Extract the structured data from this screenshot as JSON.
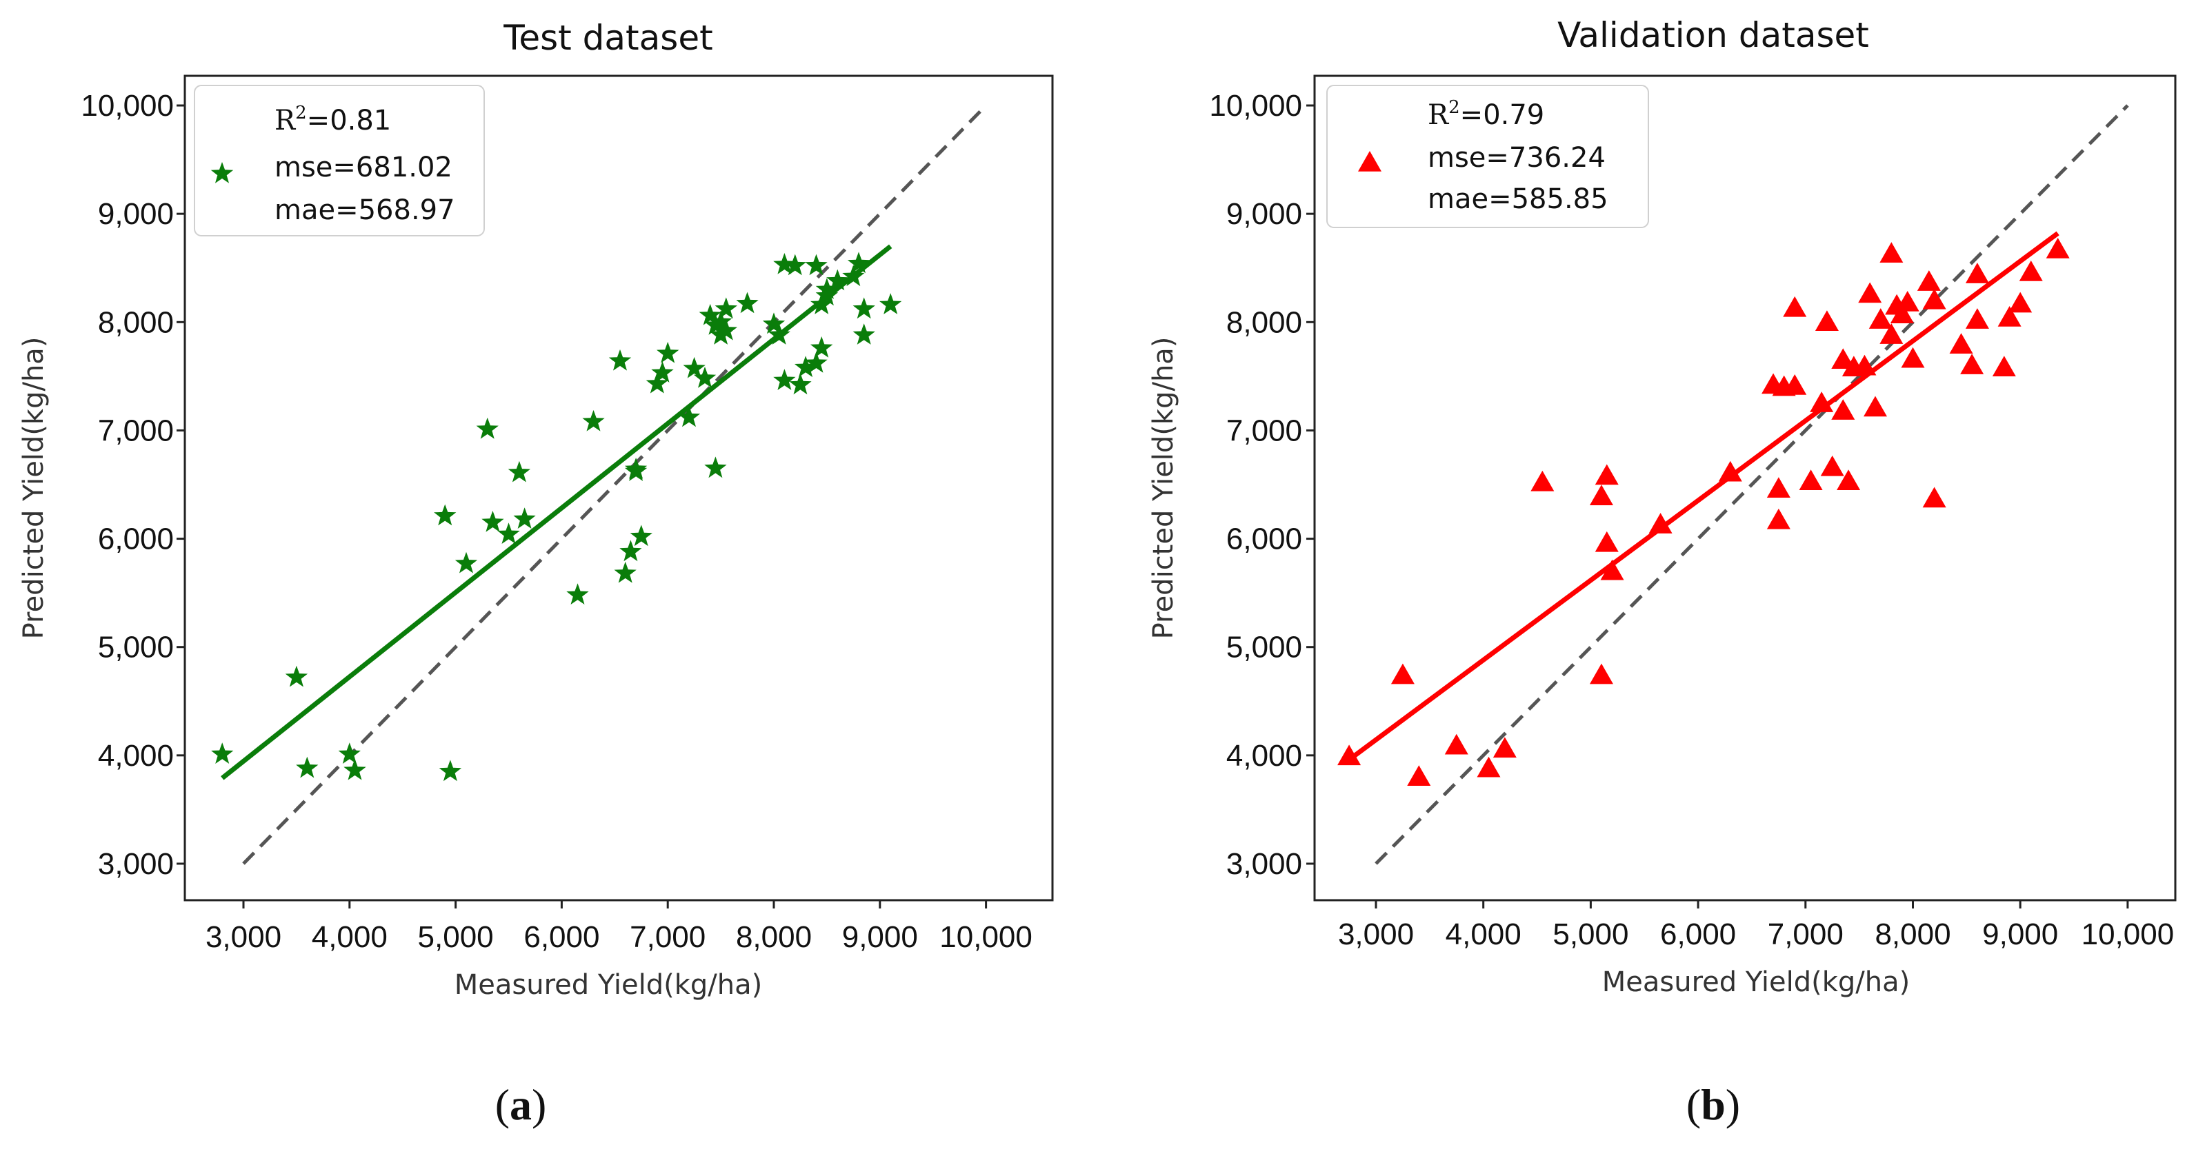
{
  "chart_data": [
    {
      "type": "scatter",
      "panel": "(a)",
      "panel_letter": "a",
      "title": "Test dataset",
      "xlabel": "Measured Yield(kg/ha)",
      "ylabel": "Predicted Yield(kg/ha)",
      "xticks": [
        "3,000",
        "4,000",
        "5,000",
        "6,000",
        "7,000",
        "8,000",
        "9,000",
        "10,000"
      ],
      "yticks": [
        "3,000",
        "4,000",
        "5,000",
        "6,000",
        "7,000",
        "8,000",
        "9,000",
        "10,000"
      ],
      "legend": {
        "r2_prefix": "R",
        "r2_sup": "2",
        "r2_value": "=0.81",
        "mse": "mse=681.02",
        "mae": "mae=568.97"
      },
      "marker": "star",
      "color": "#0a7d0a",
      "fit_line": {
        "x": [
          2800,
          9100
        ],
        "y": [
          3790,
          8700
        ]
      },
      "identity_line": {
        "x": [
          3000,
          10000
        ],
        "y": [
          3000,
          10000
        ]
      },
      "points": [
        [
          2800,
          4010
        ],
        [
          3500,
          4720
        ],
        [
          3600,
          3880
        ],
        [
          4000,
          4010
        ],
        [
          4050,
          3860
        ],
        [
          4950,
          3850
        ],
        [
          4900,
          6210
        ],
        [
          5100,
          5770
        ],
        [
          5300,
          7010
        ],
        [
          5350,
          6150
        ],
        [
          5500,
          6040
        ],
        [
          5600,
          6610
        ],
        [
          5650,
          6180
        ],
        [
          6150,
          5480
        ],
        [
          6300,
          7080
        ],
        [
          6550,
          7640
        ],
        [
          6600,
          5680
        ],
        [
          6650,
          5880
        ],
        [
          6700,
          6620
        ],
        [
          6700,
          6640
        ],
        [
          6750,
          6020
        ],
        [
          6900,
          7430
        ],
        [
          6950,
          7530
        ],
        [
          7000,
          7710
        ],
        [
          7200,
          7120
        ],
        [
          7250,
          7570
        ],
        [
          7350,
          7480
        ],
        [
          7400,
          8060
        ],
        [
          7450,
          7970
        ],
        [
          7500,
          8000
        ],
        [
          7500,
          7880
        ],
        [
          7550,
          8120
        ],
        [
          7550,
          7920
        ],
        [
          7450,
          6650
        ],
        [
          7750,
          8170
        ],
        [
          8000,
          7980
        ],
        [
          8050,
          7880
        ],
        [
          8100,
          7460
        ],
        [
          8100,
          8530
        ],
        [
          8200,
          8520
        ],
        [
          8250,
          7420
        ],
        [
          8300,
          7580
        ],
        [
          8400,
          8520
        ],
        [
          8400,
          7620
        ],
        [
          8450,
          7760
        ],
        [
          8450,
          8160
        ],
        [
          8500,
          8300
        ],
        [
          8600,
          8380
        ],
        [
          8750,
          8420
        ],
        [
          8800,
          8540
        ],
        [
          8850,
          8120
        ],
        [
          8850,
          7880
        ],
        [
          9100,
          8160
        ],
        [
          8500,
          8240
        ]
      ]
    },
    {
      "type": "scatter",
      "panel": "(b)",
      "panel_letter": "b",
      "title": "Validation dataset",
      "xlabel": "Measured Yield(kg/ha)",
      "ylabel": "Predicted Yield(kg/ha)",
      "xticks": [
        "3,000",
        "4,000",
        "5,000",
        "6,000",
        "7,000",
        "8,000",
        "9,000",
        "10,000"
      ],
      "yticks": [
        "3,000",
        "4,000",
        "5,000",
        "6,000",
        "7,000",
        "8,000",
        "9,000",
        "10,000"
      ],
      "legend": {
        "r2_prefix": "R",
        "r2_sup": "2",
        "r2_value": "=0.79",
        "mse": "mse=736.24",
        "mae": "mae=585.85"
      },
      "marker": "triangle",
      "color": "#ff0000",
      "fit_line": {
        "x": [
          2750,
          9350
        ],
        "y": [
          3960,
          8820
        ]
      },
      "identity_line": {
        "x": [
          3000,
          10000
        ],
        "y": [
          3000,
          10000
        ]
      },
      "points": [
        [
          2750,
          3990
        ],
        [
          3250,
          4740
        ],
        [
          3400,
          3800
        ],
        [
          3750,
          4090
        ],
        [
          4050,
          3880
        ],
        [
          4200,
          4060
        ],
        [
          4550,
          6520
        ],
        [
          5100,
          6390
        ],
        [
          5150,
          6580
        ],
        [
          5150,
          5960
        ],
        [
          5200,
          5700
        ],
        [
          5100,
          4740
        ],
        [
          5650,
          6130
        ],
        [
          6300,
          6610
        ],
        [
          6700,
          7420
        ],
        [
          6750,
          6460
        ],
        [
          6750,
          6170
        ],
        [
          6800,
          7400
        ],
        [
          6900,
          8130
        ],
        [
          6900,
          7410
        ],
        [
          7050,
          6530
        ],
        [
          7150,
          7250
        ],
        [
          7200,
          8000
        ],
        [
          7250,
          6660
        ],
        [
          7350,
          7180
        ],
        [
          7350,
          7650
        ],
        [
          7400,
          6530
        ],
        [
          7450,
          7580
        ],
        [
          7550,
          7590
        ],
        [
          7600,
          8260
        ],
        [
          7650,
          7210
        ],
        [
          7700,
          8020
        ],
        [
          7800,
          8630
        ],
        [
          7800,
          7880
        ],
        [
          7850,
          8150
        ],
        [
          7900,
          8070
        ],
        [
          7950,
          8180
        ],
        [
          8000,
          7660
        ],
        [
          8150,
          8370
        ],
        [
          8200,
          8200
        ],
        [
          8200,
          6370
        ],
        [
          8450,
          7790
        ],
        [
          8550,
          7600
        ],
        [
          8600,
          8020
        ],
        [
          8600,
          8440
        ],
        [
          8850,
          7580
        ],
        [
          8900,
          8040
        ],
        [
          9000,
          8170
        ],
        [
          9100,
          8460
        ],
        [
          9350,
          8670
        ]
      ]
    }
  ]
}
